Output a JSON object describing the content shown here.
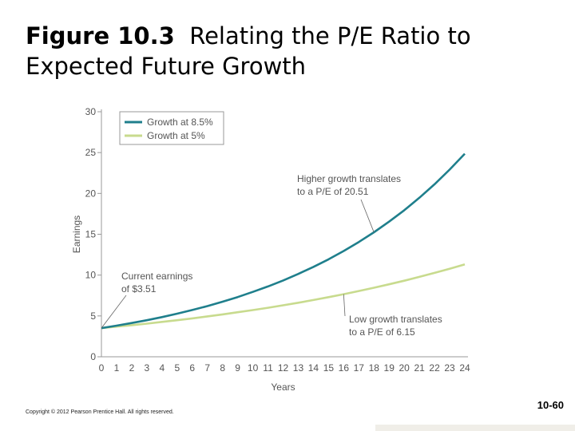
{
  "slide": {
    "title_number": "Figure 10.3",
    "title_text": "Relating the P/E Ratio to Expected Future Growth",
    "copyright": "Copyright © 2012 Pearson Prentice Hall. All rights reserved.",
    "slide_number": "10-60"
  },
  "chart_data": {
    "type": "line",
    "title": "",
    "xlabel": "Years",
    "ylabel": "Earnings",
    "xlim": [
      0,
      24
    ],
    "ylim": [
      0,
      30
    ],
    "x_ticks": [
      "0",
      "1",
      "2",
      "3",
      "4",
      "5",
      "6",
      "7",
      "8",
      "9",
      "10",
      "11",
      "12",
      "13",
      "14",
      "15",
      "16",
      "17",
      "18",
      "19",
      "20",
      "21",
      "22",
      "23",
      "24"
    ],
    "y_ticks": [
      "0",
      "5",
      "10",
      "15",
      "20",
      "25",
      "30"
    ],
    "grid": false,
    "legend_position": "top-left",
    "series": [
      {
        "name": "Growth at 8.5%",
        "color": "#1f7f8c",
        "x": [
          0,
          1,
          2,
          3,
          4,
          5,
          6,
          7,
          8,
          9,
          10,
          11,
          12,
          13,
          14,
          15,
          16,
          17,
          18,
          19,
          20,
          21,
          22,
          23,
          24
        ],
        "values": [
          3.51,
          3.81,
          4.13,
          4.48,
          4.86,
          5.28,
          5.73,
          6.21,
          6.74,
          7.31,
          7.94,
          8.61,
          9.34,
          10.14,
          11.0,
          11.93,
          12.95,
          14.05,
          15.24,
          16.54,
          17.94,
          19.47,
          21.12,
          22.92,
          24.86
        ]
      },
      {
        "name": "Growth at 5%",
        "color": "#c8db8e",
        "x": [
          0,
          1,
          2,
          3,
          4,
          5,
          6,
          7,
          8,
          9,
          10,
          11,
          12,
          13,
          14,
          15,
          16,
          17,
          18,
          19,
          20,
          21,
          22,
          23,
          24
        ],
        "values": [
          3.51,
          3.69,
          3.87,
          4.06,
          4.27,
          4.48,
          4.7,
          4.94,
          5.19,
          5.45,
          5.72,
          6.0,
          6.3,
          6.62,
          6.95,
          7.3,
          7.66,
          8.05,
          8.45,
          8.87,
          9.31,
          9.78,
          10.27,
          10.78,
          11.32
        ]
      }
    ],
    "annotations": [
      {
        "id": "current",
        "lines": [
          "Current earnings",
          "of $3.51"
        ],
        "point": [
          0,
          3.51
        ]
      },
      {
        "id": "high",
        "lines": [
          "Higher growth translates",
          "to a P/E of 20.51"
        ],
        "point": [
          18,
          15.24
        ]
      },
      {
        "id": "low",
        "lines": [
          "Low growth translates",
          "to a P/E of 6.15"
        ],
        "point": [
          16,
          7.66
        ]
      }
    ]
  }
}
